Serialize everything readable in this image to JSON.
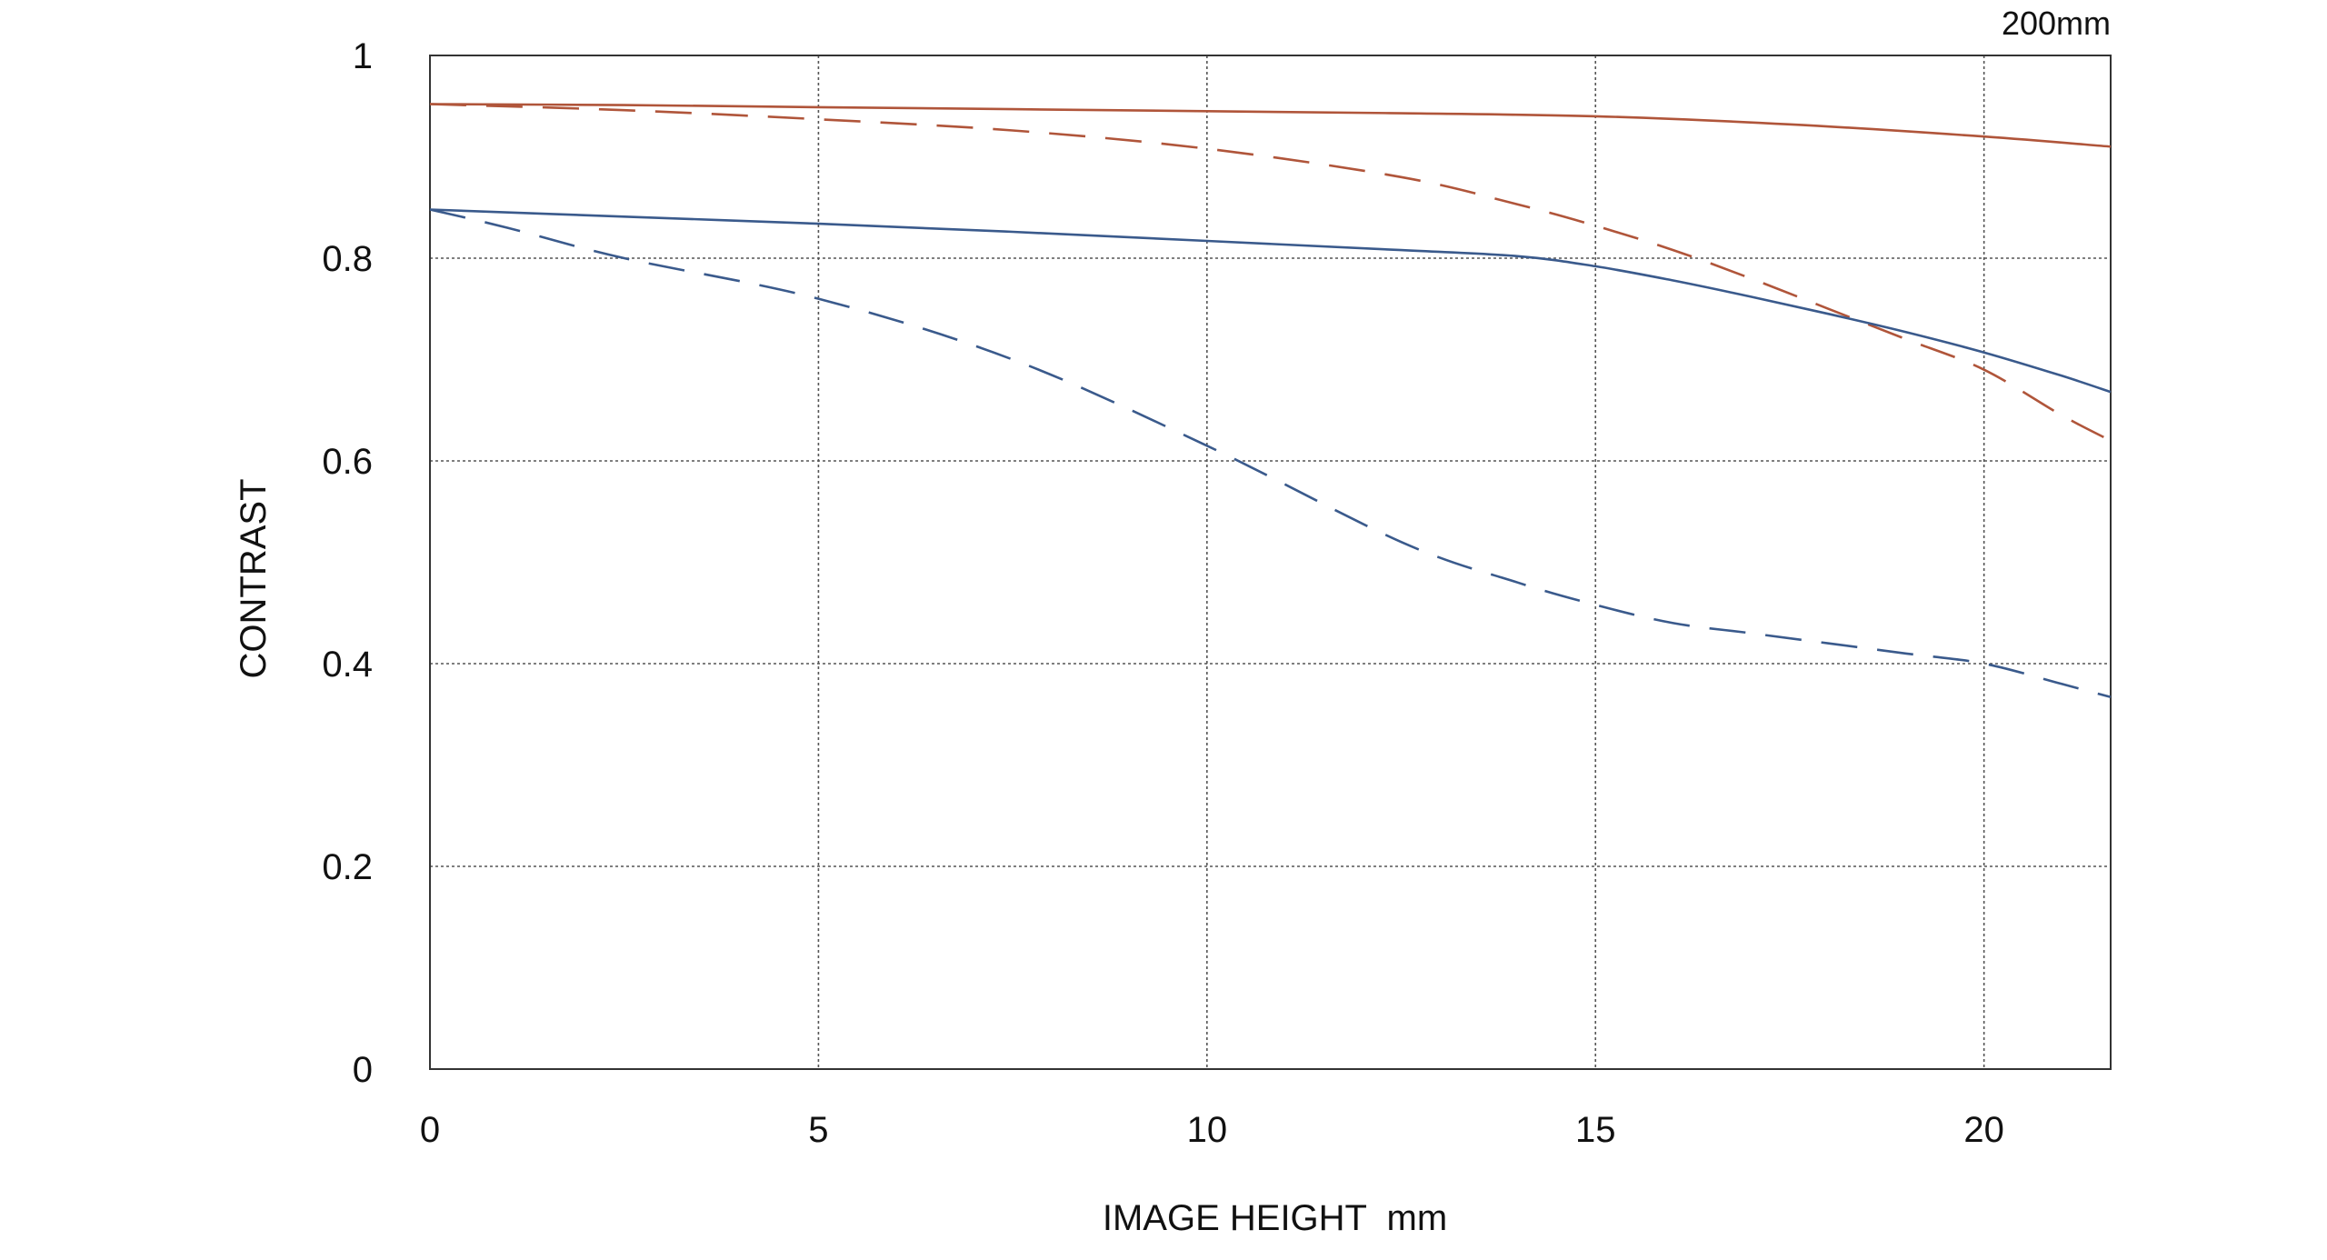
{
  "chart_data": {
    "type": "line",
    "title": "",
    "corner_label": "200mm",
    "xlabel": "IMAGE HEIGHT  mm",
    "ylabel": "CONTRAST",
    "xlim": [
      0,
      21.63
    ],
    "ylim": [
      0,
      1
    ],
    "x_ticks": [
      0,
      5,
      10,
      15,
      20
    ],
    "x_tick_labels": [
      "0",
      "5",
      "10",
      "15",
      "20"
    ],
    "y_ticks": [
      0,
      0.2,
      0.4,
      0.6,
      0.8,
      1
    ],
    "y_tick_labels": [
      "0",
      "0.2",
      "0.4",
      "0.6",
      "0.8",
      "1"
    ],
    "grid": true,
    "legend": "none",
    "series": [
      {
        "color": "#b0553a",
        "dash": "solid",
        "x": [
          0,
          2.5,
          5,
          7.5,
          10,
          12.5,
          15,
          17.5,
          20,
          21.63
        ],
        "y": [
          0.952,
          0.951,
          0.949,
          0.947,
          0.945,
          0.943,
          0.94,
          0.932,
          0.92,
          0.91
        ]
      },
      {
        "color": "#b0553a",
        "dash": "dashed",
        "x": [
          0,
          2.5,
          5,
          7.5,
          10,
          12.5,
          14,
          15,
          16,
          17,
          18,
          19,
          20,
          21,
          21.63
        ],
        "y": [
          0.952,
          0.946,
          0.937,
          0.926,
          0.908,
          0.88,
          0.853,
          0.832,
          0.808,
          0.78,
          0.75,
          0.72,
          0.69,
          0.645,
          0.62
        ]
      },
      {
        "color": "#3a5a8c",
        "dash": "solid",
        "x": [
          0,
          2.5,
          5,
          7.5,
          10,
          12.5,
          14,
          15,
          16,
          17,
          18,
          19,
          20,
          21,
          21.63
        ],
        "y": [
          0.848,
          0.841,
          0.834,
          0.826,
          0.817,
          0.808,
          0.802,
          0.792,
          0.778,
          0.762,
          0.745,
          0.727,
          0.707,
          0.684,
          0.668
        ]
      },
      {
        "color": "#3a5a8c",
        "dash": "dashed",
        "x": [
          0,
          1,
          2.5,
          5,
          7.5,
          10,
          12.5,
          14,
          15,
          16,
          17,
          18,
          19,
          20,
          21,
          21.63
        ],
        "y": [
          0.848,
          0.83,
          0.8,
          0.76,
          0.7,
          0.615,
          0.52,
          0.48,
          0.458,
          0.44,
          0.43,
          0.42,
          0.41,
          0.4,
          0.38,
          0.367
        ]
      }
    ]
  }
}
